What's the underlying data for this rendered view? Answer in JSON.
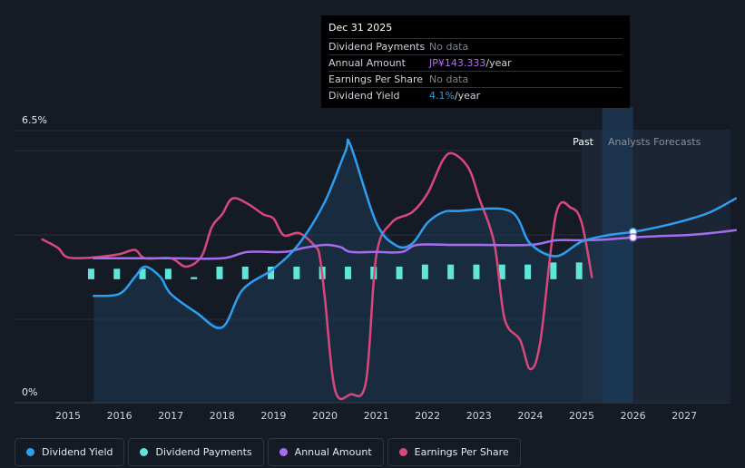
{
  "tooltip": {
    "date": "Dec 31 2025",
    "rows": [
      {
        "label": "Dividend Payments",
        "value": "No data",
        "unit": ""
      },
      {
        "label": "Annual Amount",
        "value": "JP¥143.333",
        "unit": "/year"
      },
      {
        "label": "Earnings Per Share",
        "value": "No data",
        "unit": ""
      },
      {
        "label": "Dividend Yield",
        "value": "4.1%",
        "unit": "/year"
      }
    ]
  },
  "legend": [
    {
      "label": "Dividend Yield",
      "color": "#2e9ef0"
    },
    {
      "label": "Dividend Payments",
      "color": "#5ee6d8"
    },
    {
      "label": "Annual Amount",
      "color": "#a56cf0"
    },
    {
      "label": "Earnings Per Share",
      "color": "#d9487a"
    }
  ],
  "chart_data": {
    "type": "line",
    "y_top_label": "6.5%",
    "y_bottom_label": "0%",
    "ylim": [
      0,
      6.5
    ],
    "xlim": [
      2014.3,
      2028.0
    ],
    "x_ticks": [
      "2015",
      "2016",
      "2017",
      "2018",
      "2019",
      "2020",
      "2021",
      "2022",
      "2023",
      "2024",
      "2025",
      "2026",
      "2027"
    ],
    "past_label": "Past",
    "forecast_label": "Analysts Forecasts",
    "forecast_start": 2025.0,
    "cursor_x": 2026.0,
    "series": [
      {
        "name": "Dividend Yield",
        "color": "#2e9ef0",
        "points": [
          [
            2015.5,
            2.55
          ],
          [
            2016.0,
            2.6
          ],
          [
            2016.3,
            3.0
          ],
          [
            2016.5,
            3.25
          ],
          [
            2016.8,
            3.0
          ],
          [
            2017.0,
            2.6
          ],
          [
            2017.5,
            2.15
          ],
          [
            2018.0,
            1.8
          ],
          [
            2018.4,
            2.7
          ],
          [
            2019.0,
            3.2
          ],
          [
            2019.5,
            3.8
          ],
          [
            2020.0,
            4.8
          ],
          [
            2020.4,
            6.0
          ],
          [
            2020.5,
            6.15
          ],
          [
            2021.0,
            4.3
          ],
          [
            2021.4,
            3.75
          ],
          [
            2021.7,
            3.8
          ],
          [
            2022.0,
            4.3
          ],
          [
            2022.3,
            4.55
          ],
          [
            2022.6,
            4.58
          ],
          [
            2023.6,
            4.58
          ],
          [
            2024.0,
            3.8
          ],
          [
            2024.5,
            3.5
          ],
          [
            2025.0,
            3.85
          ],
          [
            2025.5,
            4.0
          ],
          [
            2026.0,
            4.08
          ],
          [
            2026.5,
            4.2
          ],
          [
            2027.0,
            4.35
          ],
          [
            2027.5,
            4.55
          ],
          [
            2028.0,
            4.88
          ]
        ]
      },
      {
        "name": "Annual Amount",
        "color": "#a56cf0",
        "points": [
          [
            2015.5,
            3.45
          ],
          [
            2016.0,
            3.45
          ],
          [
            2017.0,
            3.45
          ],
          [
            2018.0,
            3.45
          ],
          [
            2018.5,
            3.6
          ],
          [
            2019.2,
            3.6
          ],
          [
            2019.6,
            3.7
          ],
          [
            2020.0,
            3.77
          ],
          [
            2020.3,
            3.72
          ],
          [
            2020.5,
            3.6
          ],
          [
            2021.0,
            3.6
          ],
          [
            2021.5,
            3.6
          ],
          [
            2021.8,
            3.77
          ],
          [
            2022.5,
            3.77
          ],
          [
            2023.0,
            3.77
          ],
          [
            2024.0,
            3.77
          ],
          [
            2024.5,
            3.88
          ],
          [
            2025.0,
            3.88
          ],
          [
            2025.5,
            3.9
          ],
          [
            2026.0,
            3.95
          ],
          [
            2026.5,
            3.98
          ],
          [
            2027.0,
            4.0
          ],
          [
            2027.5,
            4.05
          ],
          [
            2028.0,
            4.12
          ]
        ]
      },
      {
        "name": "Earnings Per Share",
        "color": "#d9487a",
        "points": [
          [
            2014.5,
            3.9
          ],
          [
            2014.8,
            3.7
          ],
          [
            2015.0,
            3.47
          ],
          [
            2015.5,
            3.47
          ],
          [
            2016.0,
            3.55
          ],
          [
            2016.3,
            3.65
          ],
          [
            2016.5,
            3.45
          ],
          [
            2017.0,
            3.45
          ],
          [
            2017.3,
            3.25
          ],
          [
            2017.6,
            3.5
          ],
          [
            2017.8,
            4.2
          ],
          [
            2018.0,
            4.5
          ],
          [
            2018.2,
            4.88
          ],
          [
            2018.5,
            4.75
          ],
          [
            2018.8,
            4.5
          ],
          [
            2019.0,
            4.4
          ],
          [
            2019.2,
            4.0
          ],
          [
            2019.5,
            4.05
          ],
          [
            2019.8,
            3.75
          ],
          [
            2019.9,
            3.5
          ],
          [
            2020.0,
            2.5
          ],
          [
            2020.2,
            0.3
          ],
          [
            2020.5,
            0.2
          ],
          [
            2020.8,
            0.5
          ],
          [
            2021.0,
            3.5
          ],
          [
            2021.3,
            4.3
          ],
          [
            2021.7,
            4.55
          ],
          [
            2022.0,
            5.0
          ],
          [
            2022.3,
            5.8
          ],
          [
            2022.5,
            5.95
          ],
          [
            2022.8,
            5.6
          ],
          [
            2023.0,
            4.9
          ],
          [
            2023.3,
            3.8
          ],
          [
            2023.5,
            2.0
          ],
          [
            2023.8,
            1.5
          ],
          [
            2024.0,
            0.8
          ],
          [
            2024.2,
            1.5
          ],
          [
            2024.5,
            4.5
          ],
          [
            2024.8,
            4.65
          ],
          [
            2025.0,
            4.3
          ],
          [
            2025.2,
            3.0
          ]
        ]
      }
    ],
    "bars": {
      "name": "Dividend Payments",
      "color": "#5ee6d8",
      "items": [
        {
          "x": 2015.45,
          "top": 3.2,
          "bottom": 2.95
        },
        {
          "x": 2015.95,
          "top": 3.2,
          "bottom": 2.95
        },
        {
          "x": 2016.45,
          "top": 3.2,
          "bottom": 2.95
        },
        {
          "x": 2016.95,
          "top": 3.2,
          "bottom": 2.95
        },
        {
          "x": 2017.45,
          "top": 3.0,
          "bottom": 2.95
        },
        {
          "x": 2017.95,
          "top": 3.25,
          "bottom": 2.95
        },
        {
          "x": 2018.45,
          "top": 3.25,
          "bottom": 2.95
        },
        {
          "x": 2018.95,
          "top": 3.25,
          "bottom": 2.95
        },
        {
          "x": 2019.45,
          "top": 3.25,
          "bottom": 2.95
        },
        {
          "x": 2019.95,
          "top": 3.25,
          "bottom": 2.95
        },
        {
          "x": 2020.45,
          "top": 3.25,
          "bottom": 2.95
        },
        {
          "x": 2020.95,
          "top": 3.25,
          "bottom": 2.95
        },
        {
          "x": 2021.45,
          "top": 3.25,
          "bottom": 2.95
        },
        {
          "x": 2021.95,
          "top": 3.3,
          "bottom": 2.95
        },
        {
          "x": 2022.45,
          "top": 3.3,
          "bottom": 2.95
        },
        {
          "x": 2022.95,
          "top": 3.3,
          "bottom": 2.95
        },
        {
          "x": 2023.45,
          "top": 3.3,
          "bottom": 2.95
        },
        {
          "x": 2023.95,
          "top": 3.3,
          "bottom": 2.95
        },
        {
          "x": 2024.45,
          "top": 3.35,
          "bottom": 2.95
        },
        {
          "x": 2024.95,
          "top": 3.35,
          "bottom": 2.95
        }
      ]
    }
  }
}
